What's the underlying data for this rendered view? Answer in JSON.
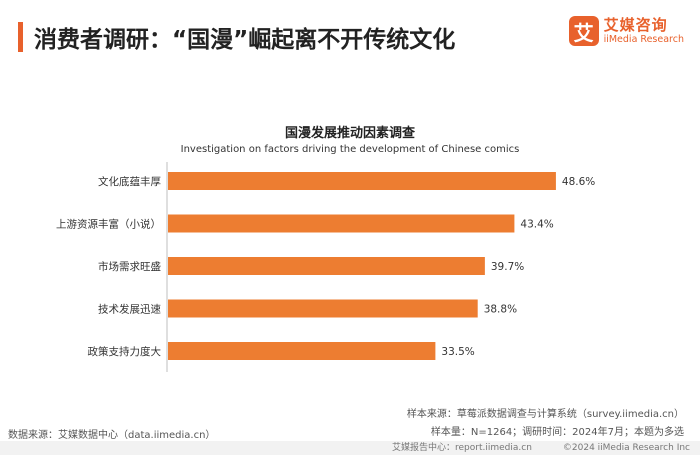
{
  "header": {
    "title": "消费者调研：“国漫”崛起离不开传统文化",
    "logo_mark": "艾",
    "logo_name": "艾媒咨询",
    "logo_sub": "iiMedia Research"
  },
  "chart_data": {
    "type": "bar",
    "orientation": "horizontal",
    "title": "国漫发展推动因素调查",
    "subtitle": "Investigation on factors driving the development of Chinese comics",
    "categories": [
      "文化底蕴丰厚",
      "上游资源丰富（小说）",
      "市场需求旺盛",
      "技术发展迅速",
      "政策支持力度大"
    ],
    "values": [
      48.6,
      43.4,
      39.7,
      38.8,
      33.5
    ],
    "labels": [
      "48.6%",
      "43.4%",
      "39.7%",
      "38.8%",
      "33.5%"
    ],
    "unit": "%",
    "xlim": [
      0,
      55
    ],
    "bar_color": "#ed7d31"
  },
  "notes": {
    "sample_source": "样本来源：草莓派数据调查与计算系统（survey.iimedia.cn）",
    "sample_size": "样本量：N=1264；调研时间：2024年7月；本题为多选",
    "data_source": "数据来源：艾媒数据中心（data.iimedia.cn）"
  },
  "footer": {
    "left": "艾媒报告中心：report.iimedia.cn",
    "right": "©2024  iiMedia Research  Inc"
  }
}
